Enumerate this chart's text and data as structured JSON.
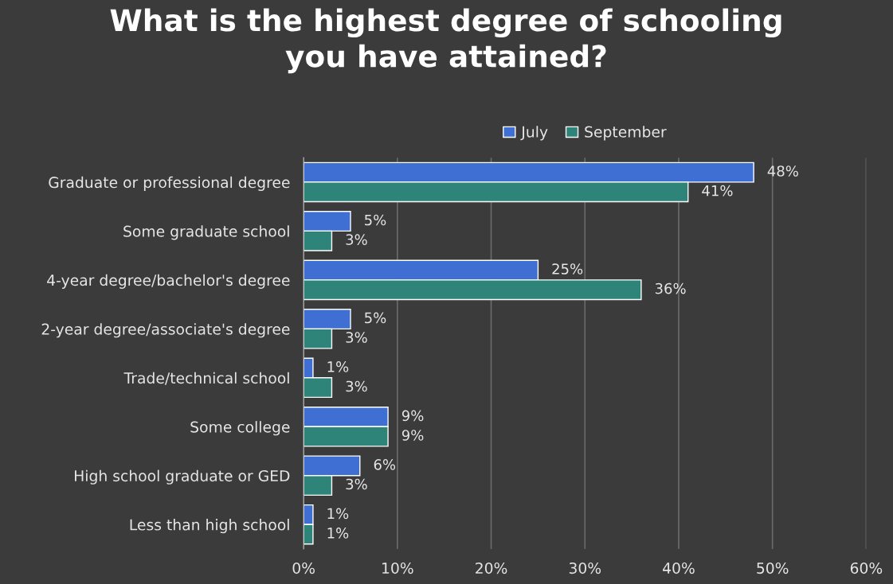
{
  "chart_data": {
    "type": "bar",
    "orientation": "horizontal",
    "title": "What is the highest degree of schooling\nyou have attained?",
    "categories": [
      "Graduate or professional degree",
      "Some graduate school",
      "4-year degree/bachelor's degree",
      "2-year degree/associate's degree",
      "Trade/technical school",
      "Some college",
      "High school graduate or GED",
      "Less than high school"
    ],
    "series": [
      {
        "name": "July",
        "color": "#3f6fd2",
        "values": [
          48,
          5,
          25,
          5,
          1,
          9,
          6,
          1
        ],
        "value_labels": [
          "48%",
          "5%",
          "25%",
          "5%",
          "1%",
          "9%",
          "6%",
          "1%"
        ]
      },
      {
        "name": "September",
        "color": "#2e8479",
        "values": [
          41,
          3,
          36,
          3,
          3,
          9,
          3,
          1
        ],
        "value_labels": [
          "41%",
          "3%",
          "36%",
          "3%",
          "3%",
          "9%",
          "3%",
          "1%"
        ]
      }
    ],
    "xlim": [
      0,
      60
    ],
    "xticks": [
      {
        "value": 0,
        "label": "0%"
      },
      {
        "value": 10,
        "label": "10%"
      },
      {
        "value": 20,
        "label": "20%"
      },
      {
        "value": 30,
        "label": "30%"
      },
      {
        "value": 40,
        "label": "40%"
      },
      {
        "value": 50,
        "label": "50%"
      },
      {
        "value": 60,
        "label": "60%"
      }
    ],
    "grid": "x",
    "legend": "top"
  }
}
